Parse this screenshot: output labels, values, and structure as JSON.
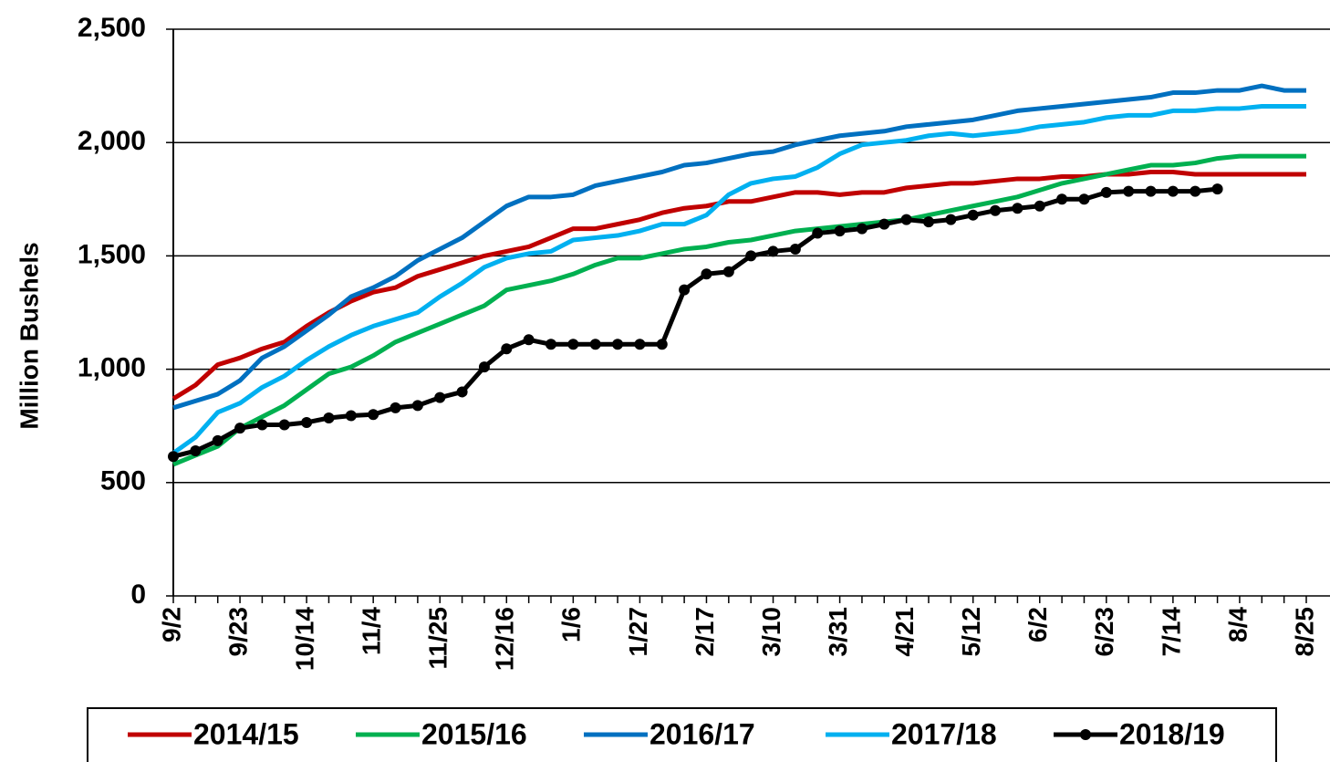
{
  "chart_data": {
    "type": "line",
    "ylabel": "Million Bushels",
    "categories": [
      "9/2",
      null,
      null,
      "9/23",
      null,
      null,
      "10/14",
      null,
      null,
      "11/4",
      null,
      null,
      "11/25",
      null,
      null,
      "12/16",
      null,
      null,
      "1/6",
      null,
      null,
      "1/27",
      null,
      null,
      "2/17",
      null,
      null,
      "3/10",
      null,
      null,
      "3/31",
      null,
      null,
      "4/21",
      null,
      null,
      "5/12",
      null,
      null,
      "6/2",
      null,
      null,
      "6/23",
      null,
      null,
      "7/14",
      null,
      null,
      "8/4",
      null,
      null,
      "8/25"
    ],
    "series": [
      {
        "name": "2014/15",
        "color": "#c00000",
        "values": [
          870,
          930,
          1020,
          1050,
          1090,
          1120,
          1190,
          1250,
          1300,
          1340,
          1360,
          1410,
          1440,
          1470,
          1500,
          1520,
          1540,
          1580,
          1620,
          1620,
          1640,
          1660,
          1690,
          1710,
          1720,
          1740,
          1740,
          1760,
          1780,
          1780,
          1770,
          1780,
          1780,
          1800,
          1810,
          1820,
          1820,
          1830,
          1840,
          1840,
          1850,
          1850,
          1860,
          1860,
          1870,
          1870,
          1860,
          1860,
          1860,
          1860,
          1860,
          1860
        ]
      },
      {
        "name": "2015/16",
        "color": "#00b050",
        "values": [
          580,
          620,
          660,
          740,
          790,
          840,
          910,
          980,
          1010,
          1060,
          1120,
          1160,
          1200,
          1240,
          1280,
          1350,
          1370,
          1390,
          1420,
          1460,
          1490,
          1490,
          1510,
          1530,
          1540,
          1560,
          1570,
          1590,
          1610,
          1620,
          1630,
          1640,
          1650,
          1660,
          1680,
          1700,
          1720,
          1740,
          1760,
          1790,
          1820,
          1840,
          1860,
          1880,
          1900,
          1900,
          1910,
          1930,
          1940,
          1940,
          1940,
          1940
        ]
      },
      {
        "name": "2016/17",
        "color": "#0070c0",
        "values": [
          830,
          860,
          890,
          950,
          1050,
          1100,
          1170,
          1240,
          1320,
          1360,
          1410,
          1480,
          1530,
          1580,
          1650,
          1720,
          1760,
          1760,
          1770,
          1810,
          1830,
          1850,
          1870,
          1900,
          1910,
          1930,
          1950,
          1960,
          1990,
          2010,
          2030,
          2040,
          2050,
          2070,
          2080,
          2090,
          2100,
          2120,
          2140,
          2150,
          2160,
          2170,
          2180,
          2190,
          2200,
          2220,
          2220,
          2230,
          2230,
          2250,
          2230,
          2230
        ]
      },
      {
        "name": "2017/18",
        "color": "#00b0f0",
        "values": [
          630,
          700,
          810,
          850,
          920,
          970,
          1040,
          1100,
          1150,
          1190,
          1220,
          1250,
          1320,
          1380,
          1450,
          1490,
          1510,
          1520,
          1570,
          1580,
          1590,
          1610,
          1640,
          1640,
          1680,
          1770,
          1820,
          1840,
          1850,
          1890,
          1950,
          1990,
          2000,
          2010,
          2030,
          2040,
          2030,
          2040,
          2050,
          2070,
          2080,
          2090,
          2110,
          2120,
          2120,
          2140,
          2140,
          2150,
          2150,
          2160,
          2160,
          2160
        ]
      },
      {
        "name": "2018/19",
        "color": "#000000",
        "marker": "circle",
        "values": [
          615,
          640,
          685,
          740,
          755,
          755,
          765,
          785,
          795,
          800,
          830,
          840,
          875,
          900,
          1010,
          1090,
          1130,
          1110,
          1110,
          1110,
          1110,
          1110,
          1110,
          1350,
          1420,
          1430,
          1500,
          1520,
          1530,
          1600,
          1610,
          1620,
          1640,
          1660,
          1650,
          1660,
          1680,
          1700,
          1710,
          1720,
          1750,
          1750,
          1780,
          1785,
          1785,
          1785,
          1785,
          1795,
          null,
          null,
          null,
          null
        ]
      }
    ],
    "ylim": [
      0,
      2500
    ],
    "yticks": [
      0,
      500,
      {
        "value": 1000,
        "label": "1,000"
      },
      {
        "value": 1500,
        "label": "1,500"
      },
      {
        "value": 2000,
        "label": "2,000"
      },
      {
        "value": 2500,
        "label": "2,500"
      }
    ],
    "grid": true,
    "legend": "bottom"
  }
}
